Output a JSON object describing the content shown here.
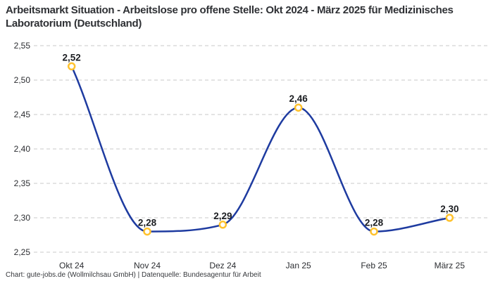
{
  "header": {
    "title": "Arbeitsmarkt Situation - Arbeitslose pro offene Stelle: Okt 2024 - März 2025 für Medizinisches Laboratorium (Deutschland)"
  },
  "footer": {
    "credit": "Chart: gute-jobs.de (Wollmilchsau GmbH) | Datenquelle: Bundesagentur für Arbeit"
  },
  "chart_data": {
    "type": "line",
    "title": "Arbeitsmarkt Situation - Arbeitslose pro offene Stelle: Okt 2024 - März 2025 für Medizinisches Laboratorium (Deutschland)",
    "categories": [
      "Okt 24",
      "Nov 24",
      "Dez 24",
      "Jan 25",
      "Feb 25",
      "März 25"
    ],
    "values": [
      2.52,
      2.28,
      2.29,
      2.46,
      2.28,
      2.3
    ],
    "point_labels": [
      "2,52",
      "2,28",
      "2,29",
      "2,46",
      "2,28",
      "2,30"
    ],
    "ylim": [
      2.25,
      2.55
    ],
    "yticks": [
      2.25,
      2.3,
      2.35,
      2.4,
      2.45,
      2.5,
      2.55
    ],
    "ytick_labels": [
      "2,25",
      "2,30",
      "2,35",
      "2,40",
      "2,45",
      "2,50",
      "2,55"
    ],
    "xlabel": "",
    "ylabel": "",
    "legend": "none",
    "grid": "dashed-horizontal",
    "curve": "monotone",
    "colors": {
      "line": "#1e3ba0",
      "marker_ring": "#ffc22e",
      "marker_fill": "#ffffff",
      "grid": "#c9c9c9",
      "point_label": "#1b1d21",
      "axis_text": "#2b2d31",
      "title": "#2f3135",
      "background": "#ffffff"
    }
  }
}
